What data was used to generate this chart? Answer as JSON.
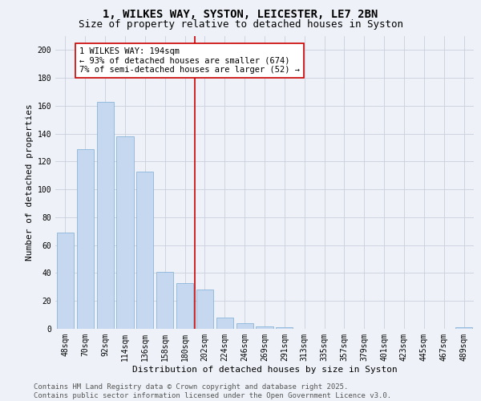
{
  "title_line1": "1, WILKES WAY, SYSTON, LEICESTER, LE7 2BN",
  "title_line2": "Size of property relative to detached houses in Syston",
  "xlabel": "Distribution of detached houses by size in Syston",
  "ylabel": "Number of detached properties",
  "categories": [
    "48sqm",
    "70sqm",
    "92sqm",
    "114sqm",
    "136sqm",
    "158sqm",
    "180sqm",
    "202sqm",
    "224sqm",
    "246sqm",
    "269sqm",
    "291sqm",
    "313sqm",
    "335sqm",
    "357sqm",
    "379sqm",
    "401sqm",
    "423sqm",
    "445sqm",
    "467sqm",
    "489sqm"
  ],
  "values": [
    69,
    129,
    163,
    138,
    113,
    41,
    33,
    28,
    8,
    4,
    2,
    1,
    0,
    0,
    0,
    0,
    0,
    0,
    0,
    0,
    1
  ],
  "bar_color": "#c5d8f0",
  "bar_edge_color": "#7aadd4",
  "grid_color": "#c8d0dc",
  "background_color": "#eef2f8",
  "vline_color": "#cc0000",
  "annotation_text": "1 WILKES WAY: 194sqm\n← 93% of detached houses are smaller (674)\n7% of semi-detached houses are larger (52) →",
  "annotation_box_color": "#cc0000",
  "ylim": [
    0,
    210
  ],
  "yticks": [
    0,
    20,
    40,
    60,
    80,
    100,
    120,
    140,
    160,
    180,
    200
  ],
  "footer_text": "Contains HM Land Registry data © Crown copyright and database right 2025.\nContains public sector information licensed under the Open Government Licence v3.0.",
  "title_fontsize": 10,
  "subtitle_fontsize": 9,
  "xlabel_fontsize": 8,
  "ylabel_fontsize": 8,
  "tick_fontsize": 7,
  "annotation_fontsize": 7.5,
  "footer_fontsize": 6.5
}
